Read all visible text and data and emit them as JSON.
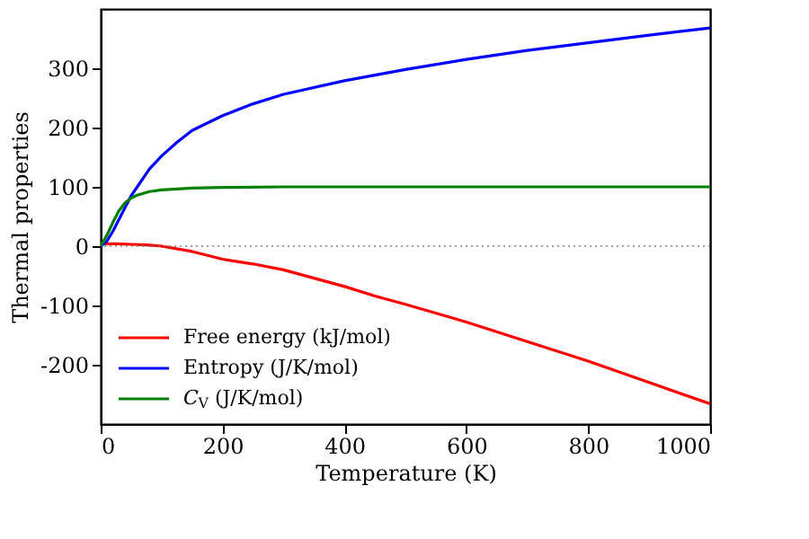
{
  "chart_data": {
    "type": "line",
    "xlabel": "Temperature (K)",
    "ylabel": "Thermal properties",
    "xlim": [
      0,
      1000
    ],
    "xticks": [
      0,
      200,
      400,
      600,
      800,
      {
        "value": 1000,
        "label": "1000"
      }
    ],
    "ylim": [
      -300,
      400
    ],
    "yticks": [
      -200,
      -100,
      0,
      100,
      200,
      300
    ],
    "grid": false,
    "legend": "bottom left",
    "marker": "none",
    "line_style": "solid",
    "ref_lines": [
      {
        "axis": "y",
        "value": 0,
        "line_style": "dotted",
        "color": "#808080"
      }
    ],
    "series": [
      {
        "name": "Free energy (kJ/mol)",
        "color": "#ff0000",
        "x": [
          0,
          25,
          50,
          75,
          100,
          150,
          200,
          250,
          300,
          350,
          400,
          450,
          500,
          600,
          700,
          800,
          900,
          1000
        ],
        "values": [
          4,
          4,
          3,
          2,
          0,
          -9,
          -22,
          -30,
          -40,
          -54,
          -68,
          -84,
          -98,
          -128,
          -161,
          -194,
          -230,
          -266
        ]
      },
      {
        "name": "Entropy (J/K/mol)",
        "color": "#0000ff",
        "x": [
          0,
          10,
          20,
          30,
          40,
          50,
          60,
          80,
          100,
          125,
          150,
          200,
          250,
          300,
          400,
          500,
          600,
          700,
          800,
          900,
          1000
        ],
        "values": [
          0,
          8,
          25,
          45,
          65,
          85,
          100,
          130,
          152,
          175,
          195,
          220,
          240,
          256,
          279,
          298,
          315,
          330,
          343,
          356,
          368
        ]
      },
      {
        "name": "C$_{V}$ (J/K/mol)",
        "color": "#008000",
        "x": [
          0,
          10,
          20,
          30,
          40,
          50,
          60,
          80,
          100,
          150,
          200,
          300,
          400,
          600,
          800,
          1000
        ],
        "values": [
          0,
          18,
          40,
          60,
          73,
          81,
          86,
          92,
          95,
          98,
          99,
          100,
          100,
          100,
          100,
          100
        ]
      }
    ]
  }
}
